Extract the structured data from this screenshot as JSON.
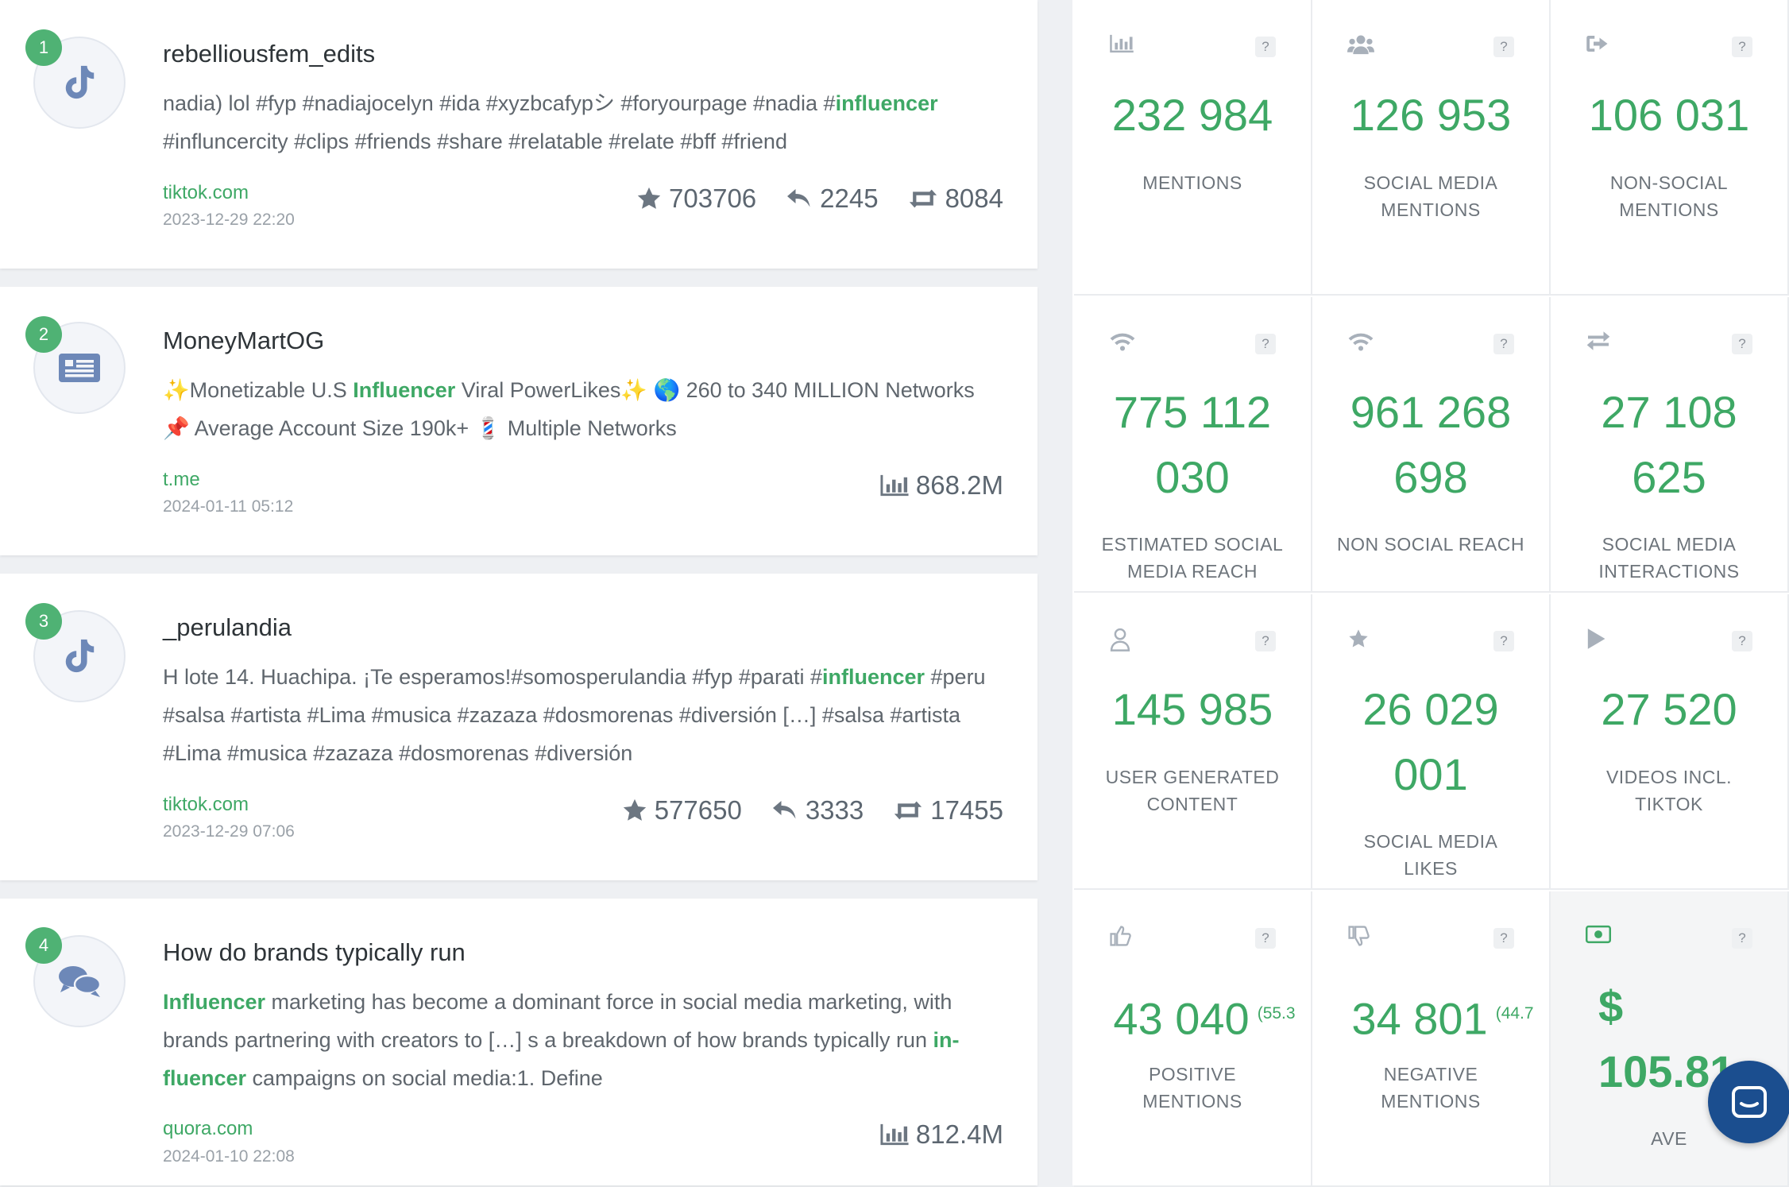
{
  "mentions": [
    {
      "rank": "1",
      "source_icon": "tiktok-icon",
      "title": "rebelliousfem_edits",
      "text_parts": [
        {
          "t": "nadia) lol #fyp #nadiajocelyn #ida #xyzbcafypシ #foryourpage #nadia #",
          "h": false
        },
        {
          "t": "influencer",
          "h": true
        },
        {
          "t": " #influncercity #clips #friends #share #relatable #relate #bff #friend",
          "h": false
        }
      ],
      "domain": "tiktok.com",
      "date": "2023-12-29 22:20",
      "likes": "703706",
      "comments": "2245",
      "shares": "8084"
    },
    {
      "rank": "2",
      "source_icon": "news-icon",
      "title": "MoneyMartOG",
      "text_parts": [
        {
          "t": "✨Monetizable U.S ",
          "h": false
        },
        {
          "t": "Influencer",
          "h": true
        },
        {
          "t": " Viral PowerLikes✨ 🌎 260 to 340 MILLION Networks 📌 Average Account Size 190k+ 💈 Multiple Networks",
          "h": false
        }
      ],
      "domain": "t.me",
      "date": "2024-01-11 05:12",
      "reach": "868.2M"
    },
    {
      "rank": "3",
      "source_icon": "tiktok-icon",
      "title": "_perulandia",
      "text_parts": [
        {
          "t": "H lote 14. Huachipa. ¡Te esperamos!#somosperulandia #fyp #parati #",
          "h": false
        },
        {
          "t": "influencer",
          "h": true
        },
        {
          "t": " #peru #salsa #artista #Lima #musica #zazaza #dosmorenas #diversión […] #salsa #artista #Lima #musica #zazaza #dosmorenas #diversión",
          "h": false
        }
      ],
      "domain": "tiktok.com",
      "date": "2023-12-29 07:06",
      "likes": "577650",
      "comments": "3333",
      "shares": "17455"
    },
    {
      "rank": "4",
      "source_icon": "forum-icon",
      "title": "How do brands typically run",
      "text_parts": [
        {
          "t": "Influencer",
          "h": true
        },
        {
          "t": " marketing has become a dominant force in social media marketing, with brands partnering with creators to […] s a breakdown of how brands typically run ",
          "h": false
        },
        {
          "t": "in-fluencer",
          "h": true
        },
        {
          "t": " campaigns on social media:1. Define",
          "h": false
        }
      ],
      "domain": "quora.com",
      "date": "2024-01-10 22:08",
      "reach": "812.4M"
    }
  ],
  "metrics": [
    {
      "icon": "bar-chart-icon",
      "value": "232 984",
      "label": "MENTIONS"
    },
    {
      "icon": "users-icon",
      "value": "126 953",
      "label": "SOCIAL MEDIA MENTIONS"
    },
    {
      "icon": "sign-out-icon",
      "value": "106 031",
      "label": "NON-SOCIAL MENTIONS"
    },
    {
      "icon": "wifi-icon",
      "value": "775 112 030",
      "label": "ESTIMATED SOCIAL MEDIA REACH"
    },
    {
      "icon": "wifi-icon",
      "value": "961 268 698",
      "label": "NON SOCIAL REACH"
    },
    {
      "icon": "exchange-icon",
      "value": "27 108 625",
      "label": "SOCIAL MEDIA INTERACTIONS"
    },
    {
      "icon": "user-icon",
      "value": "145 985",
      "label": "USER GENERATED CONTENT"
    },
    {
      "icon": "star-icon",
      "value": "26 029 001",
      "label": "SOCIAL MEDIA LIKES"
    },
    {
      "icon": "play-icon",
      "value": "27 520",
      "label": "VIDEOS INCL. TIKTOK"
    },
    {
      "icon": "thumbs-up-icon",
      "value": "43 040",
      "pct": "(55.3",
      "label": "POSITIVE MENTIONS"
    },
    {
      "icon": "thumbs-down-icon",
      "value": "34 801",
      "pct": "(44.7",
      "label": "NEGATIVE MENTIONS"
    },
    {
      "icon": "money-icon",
      "value": "$ 105.81",
      "label": "AVE"
    }
  ],
  "help_glyph": "?",
  "colors": {
    "accent": "#3ea865",
    "rank_badge": "#4fb274",
    "chat_button": "#1b4e8f"
  }
}
